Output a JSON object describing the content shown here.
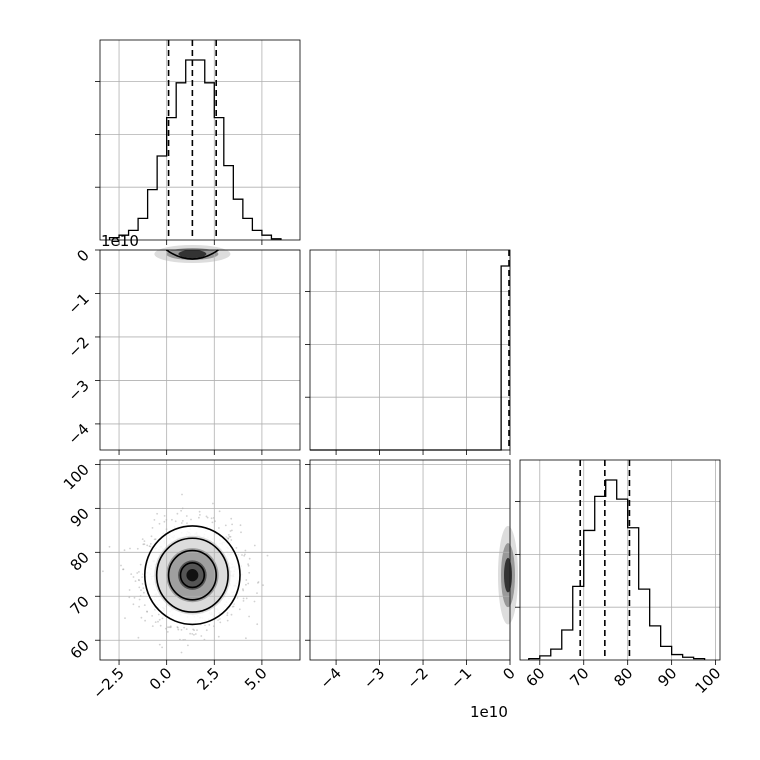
{
  "chart_data": {
    "type": "corner",
    "parameters": [
      {
        "index": 0,
        "range": [
          -3.5,
          7.0
        ],
        "ticks": [
          "−2.5",
          "0.0",
          "2.5",
          "5.0"
        ],
        "tick_values": [
          -2.5,
          0.0,
          2.5,
          5.0
        ],
        "quantiles": [
          0.1,
          1.35,
          2.6
        ],
        "histogram": {
          "edges": [
            -3.0,
            -2.5,
            -2.0,
            -1.5,
            -1.0,
            -0.5,
            0.0,
            0.5,
            1.0,
            1.5,
            2.0,
            2.5,
            3.0,
            3.5,
            4.0,
            4.5,
            5.0,
            5.5,
            6.0
          ],
          "counts": [
            2,
            4,
            8,
            18,
            42,
            70,
            102,
            131,
            150,
            150,
            131,
            102,
            62,
            34,
            18,
            8,
            4,
            1
          ]
        }
      },
      {
        "index": 1,
        "range": [
          -46000000000.0,
          0.0
        ],
        "ticks": [
          "0",
          "−1",
          "−2",
          "−3",
          "−4"
        ],
        "tick_values": [
          0,
          -10000000000.0,
          -20000000000.0,
          -30000000000.0,
          -40000000000.0
        ],
        "offset_text": "1e10",
        "histogram": {
          "note_bar_at": -200000000.0,
          "peak_height_fraction": 0.92
        }
      },
      {
        "index": 2,
        "range": [
          55.5,
          101.0
        ],
        "ticks": [
          "60",
          "70",
          "80",
          "90",
          "100"
        ],
        "tick_values": [
          60,
          70,
          80,
          90,
          100
        ],
        "quantiles": [
          69.2,
          74.8,
          80.4
        ],
        "histogram": {
          "edges": [
            57.5,
            60.0,
            62.5,
            65.0,
            67.5,
            70.0,
            72.5,
            75.0,
            77.5,
            80.0,
            82.5,
            85.0,
            87.5,
            90.0,
            92.5,
            95.0,
            97.5
          ],
          "counts": [
            1,
            3,
            8,
            22,
            54,
            95,
            120,
            132,
            118,
            97,
            52,
            25,
            10,
            4,
            2,
            1
          ]
        }
      }
    ],
    "scatter_0_2": {
      "center": [
        1.35,
        74.8
      ],
      "sigma": [
        1.25,
        5.6
      ]
    },
    "contour_levels": 4,
    "bottom_offset_text": "1e10",
    "colors": {
      "line": "#000000",
      "grid": "#b0b0b0",
      "points": "#9a9a9a"
    }
  }
}
